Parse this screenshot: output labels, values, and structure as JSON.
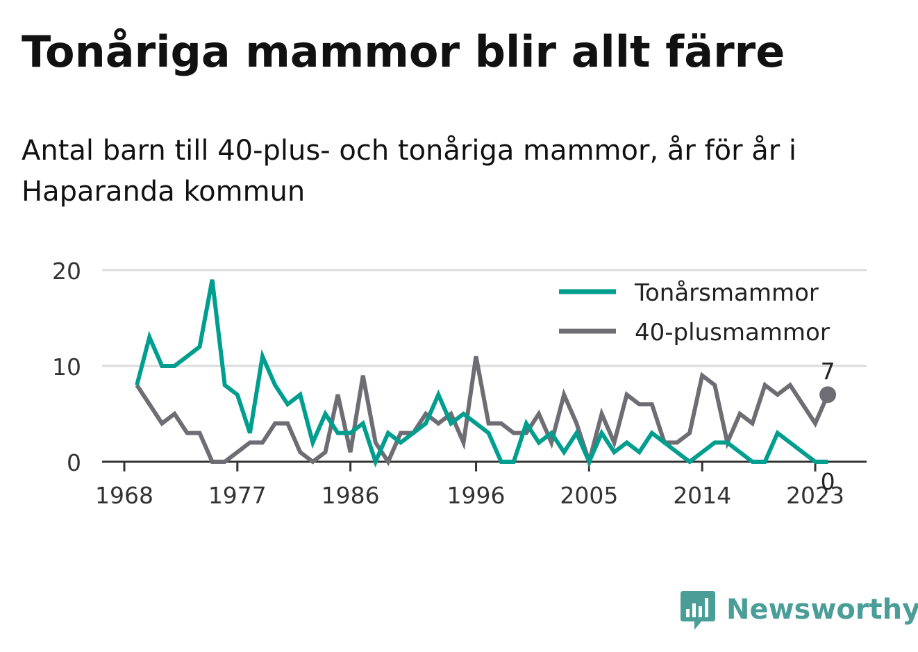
{
  "title": "Tonåriga mammor blir allt färre",
  "subtitle": "Antal barn till 40-plus- och tonåriga mammor, år för år i Haparanda kommun",
  "brand": {
    "name": "Newsworthy",
    "icon": "newsworthy-logo-icon",
    "color": "#4a9e97"
  },
  "colors": {
    "teen": "#009e8f",
    "forty": "#6e6d73",
    "grid": "#dcdcdc",
    "axis": "#333333"
  },
  "chart_data": {
    "type": "line",
    "title": "Tonåriga mammor blir allt färre",
    "subtitle": "Antal barn till 40-plus- och tonåriga mammor, år för år i Haparanda kommun",
    "xlabel": "",
    "ylabel": "",
    "xlim": [
      1967,
      2026
    ],
    "ylim": [
      0,
      20
    ],
    "x_ticks": [
      1968,
      1977,
      1986,
      1996,
      2005,
      2014,
      2023
    ],
    "y_ticks": [
      0,
      10,
      20
    ],
    "grid": true,
    "legend": "top-right",
    "x": [
      1969,
      1970,
      1971,
      1972,
      1973,
      1974,
      1975,
      1976,
      1977,
      1978,
      1979,
      1980,
      1981,
      1982,
      1983,
      1984,
      1985,
      1986,
      1987,
      1988,
      1989,
      1990,
      1991,
      1992,
      1993,
      1994,
      1995,
      1996,
      1997,
      1998,
      1999,
      2000,
      2001,
      2002,
      2003,
      2004,
      2005,
      2006,
      2007,
      2008,
      2009,
      2010,
      2011,
      2012,
      2013,
      2014,
      2015,
      2016,
      2017,
      2018,
      2019,
      2020,
      2021,
      2022,
      2023,
      2024
    ],
    "series": [
      {
        "name": "Tonårsmammor",
        "color": "#009e8f",
        "values": [
          8,
          13,
          10,
          10,
          11,
          12,
          19,
          8,
          7,
          3,
          11,
          8,
          6,
          7,
          2,
          5,
          3,
          3,
          4,
          0,
          3,
          2,
          3,
          4,
          7,
          4,
          5,
          4,
          3,
          0,
          0,
          4,
          2,
          3,
          1,
          3,
          0,
          3,
          1,
          2,
          1,
          3,
          2,
          1,
          0,
          1,
          2,
          2,
          1,
          0,
          0,
          3,
          2,
          1,
          0,
          0
        ],
        "end_label": "0"
      },
      {
        "name": "40-plusmammor",
        "color": "#6e6d73",
        "values": [
          8,
          6,
          4,
          5,
          3,
          3,
          0,
          0,
          1,
          2,
          2,
          4,
          4,
          1,
          0,
          1,
          7,
          1,
          9,
          2,
          0,
          3,
          3,
          5,
          4,
          5,
          2,
          11,
          4,
          4,
          3,
          3,
          5,
          2,
          7,
          4,
          0,
          5,
          2,
          7,
          6,
          6,
          2,
          2,
          3,
          9,
          8,
          2,
          5,
          4,
          8,
          7,
          8,
          6,
          4,
          7
        ],
        "end_label": "7"
      }
    ]
  }
}
